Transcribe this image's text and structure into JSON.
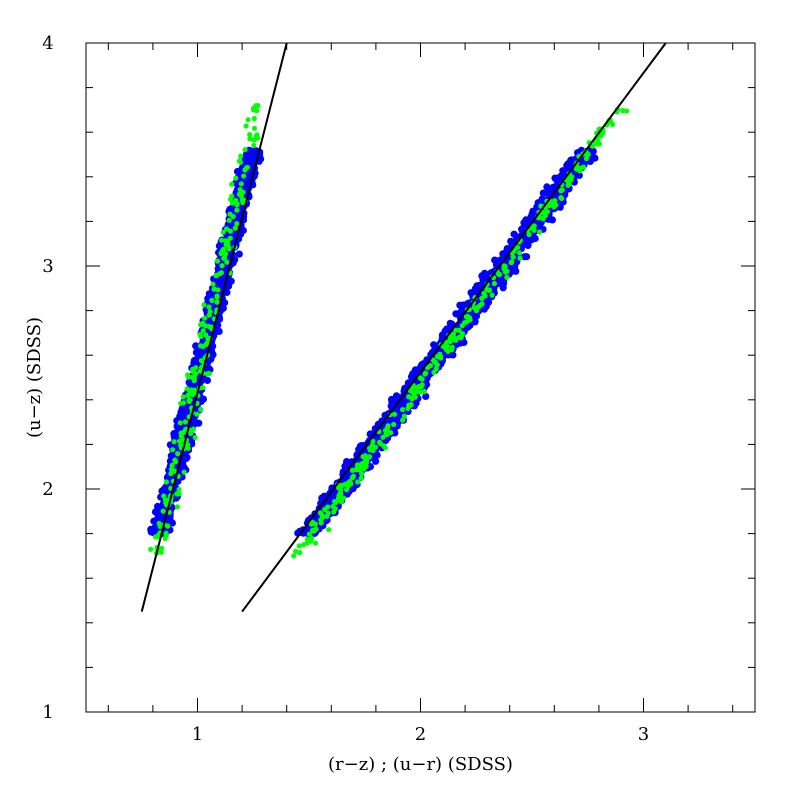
{
  "chart_data": {
    "type": "scatter",
    "xlabel": "(r−z) ; (u−r) (SDSS)",
    "ylabel": "(u−z)  (SDSS)",
    "xlim": [
      0.5,
      3.5
    ],
    "ylim": [
      1,
      4
    ],
    "x_major_ticks": [
      1,
      2,
      3
    ],
    "x_major_tick_labels": [
      "1",
      "2",
      "3"
    ],
    "y_major_ticks": [
      1,
      2,
      3,
      4
    ],
    "y_major_tick_labels": [
      "1",
      "2",
      "3",
      "4"
    ],
    "grid": false,
    "colors": {
      "blue": "#0000ff",
      "green": "#00ff00",
      "line": "#000000"
    },
    "fit_lines": [
      {
        "x": [
          0.75,
          1.4
        ],
        "y": [
          1.45,
          4.0
        ]
      },
      {
        "x": [
          1.2,
          3.1
        ],
        "y": [
          1.45,
          4.0
        ]
      }
    ],
    "point_clouds": [
      {
        "color": "blue",
        "center_line": {
          "x": [
            0.83,
            1.25
          ],
          "y": [
            1.8,
            3.52
          ]
        },
        "y_range": [
          1.8,
          3.52
        ],
        "x_half_width": 0.04,
        "approx_count": 1400
      },
      {
        "color": "green",
        "center_line": {
          "x": [
            0.82,
            1.27
          ],
          "y": [
            1.7,
            3.72
          ]
        },
        "y_range": [
          1.7,
          3.72
        ],
        "x_half_width": 0.045,
        "approx_count": 220
      },
      {
        "color": "blue",
        "center_line": {
          "x": [
            1.5,
            2.75
          ],
          "y": [
            1.8,
            3.52
          ]
        },
        "y_range": [
          1.8,
          3.52
        ],
        "x_half_width": 0.055,
        "approx_count": 1600
      },
      {
        "color": "green",
        "center_line": {
          "x": [
            1.45,
            2.9
          ],
          "y": [
            1.7,
            3.72
          ]
        },
        "y_range": [
          1.7,
          3.72
        ],
        "x_half_width": 0.04,
        "approx_count": 300
      }
    ]
  }
}
